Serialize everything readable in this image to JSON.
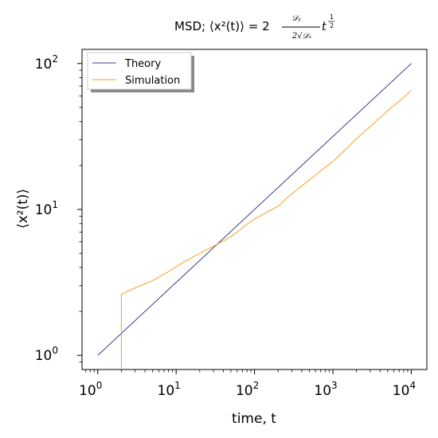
{
  "chart_data": {
    "type": "line",
    "title": {
      "main": "MSD; ⟨x²(t)⟩ = 2",
      "frac_num": "𝒟ᵧ",
      "frac_den": "2√𝒟ₓ",
      "tail": "t",
      "exp_num": "1",
      "exp_den": "2"
    },
    "xlabel": "time, t",
    "ylabel": "⟨x²(t)⟩",
    "xscale": "log",
    "yscale": "log",
    "xlim": [
      0.63,
      15800
    ],
    "ylim": [
      0.8,
      125
    ],
    "grid": false,
    "legend_position": "top-left",
    "x_ticks": [
      {
        "value": 1,
        "base": "10",
        "exp": "0"
      },
      {
        "value": 10,
        "base": "10",
        "exp": "1"
      },
      {
        "value": 100,
        "base": "10",
        "exp": "2"
      },
      {
        "value": 1000,
        "base": "10",
        "exp": "3"
      },
      {
        "value": 10000,
        "base": "10",
        "exp": "4"
      }
    ],
    "y_ticks": [
      {
        "value": 1,
        "base": "10",
        "exp": "0"
      },
      {
        "value": 10,
        "base": "10",
        "exp": "1"
      },
      {
        "value": 100,
        "base": "10",
        "exp": "2"
      }
    ],
    "series": [
      {
        "name": "Theory",
        "color": "#3b3b8f",
        "x": [
          1,
          10000
        ],
        "y": [
          1,
          100
        ]
      },
      {
        "name": "Simulation",
        "color": "#f7a01e",
        "x": [
          2,
          2,
          3,
          5,
          8,
          12,
          18,
          30,
          50,
          80,
          100,
          150,
          200,
          250,
          300,
          500,
          800,
          1000,
          2000,
          3000,
          5000,
          8000,
          10000
        ],
        "y": [
          0.8,
          2.62,
          2.9,
          3.25,
          3.75,
          4.3,
          4.85,
          5.6,
          6.5,
          7.9,
          8.6,
          9.7,
          10.5,
          11.8,
          12.8,
          15.9,
          19.5,
          21.3,
          30.5,
          37.0,
          47.5,
          58.5,
          65.5
        ]
      }
    ]
  }
}
